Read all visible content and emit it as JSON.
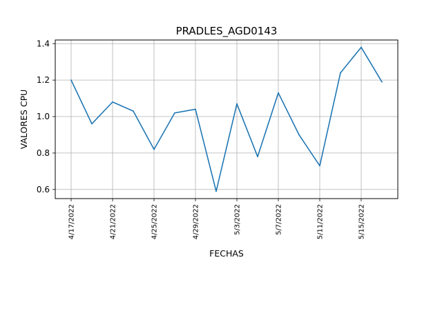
{
  "chart_data": {
    "type": "line",
    "title": "PRADLES_AGD0143",
    "xlabel": "FECHAS",
    "ylabel": "VALORES CPU",
    "x": [
      "4/17/2022",
      "4/19/2022",
      "4/21/2022",
      "4/23/2022",
      "4/25/2022",
      "4/27/2022",
      "4/29/2022",
      "5/1/2022",
      "5/3/2022",
      "5/5/2022",
      "5/7/2022",
      "5/9/2022",
      "5/11/2022",
      "5/13/2022",
      "5/15/2022",
      "5/17/2022"
    ],
    "series": [
      {
        "values": [
          1.2,
          0.96,
          1.08,
          1.03,
          0.82,
          1.02,
          1.04,
          0.59,
          1.07,
          0.78,
          1.13,
          0.9,
          0.73,
          1.24,
          1.38,
          1.19
        ],
        "color": "#1f77b4"
      }
    ],
    "xticks": [
      "4/17/2022",
      "4/21/2022",
      "4/25/2022",
      "4/29/2022",
      "5/3/2022",
      "5/7/2022",
      "5/11/2022",
      "5/15/2022"
    ],
    "yticks": [
      "0.6",
      "0.8",
      "1.0",
      "1.2",
      "1.4"
    ],
    "ylim": [
      0.55,
      1.42
    ],
    "grid": true,
    "legend": "none"
  }
}
